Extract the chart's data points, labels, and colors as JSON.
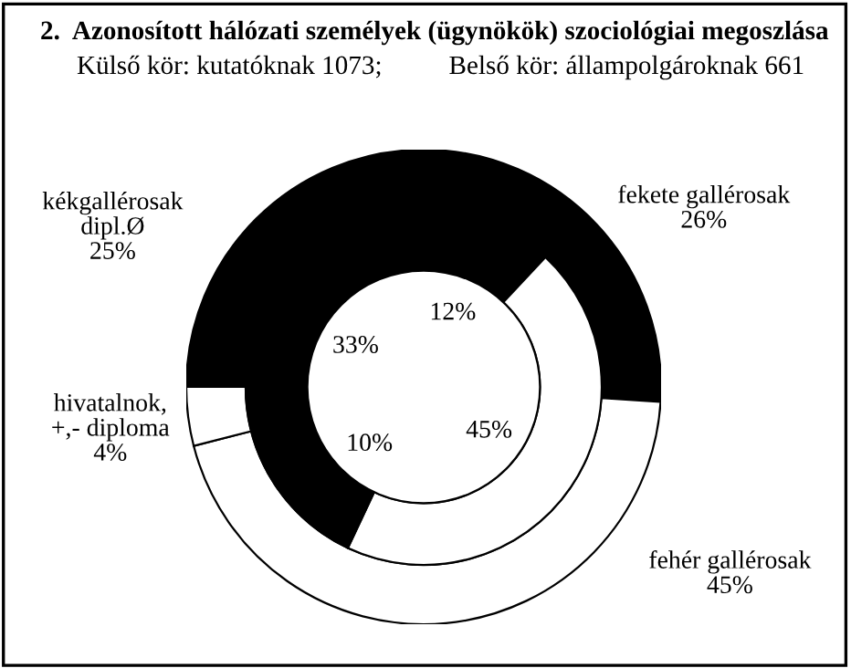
{
  "chart_data": {
    "type": "donut",
    "title": "2.  Azonosított hálózati személyek (ügynökök) szociológiai megoszlása",
    "subtitle": "Külső kör: kutatóknak 1073;          Belső kör: állampolgároknak 661",
    "categories": [
      "fekete gallérosak",
      "fehér gallérosak",
      "hivatalnok,\n+,- diploma",
      "kékgallérosak\ndipl.Ø"
    ],
    "series": [
      {
        "values": [
          26,
          45,
          4,
          25
        ],
        "colors": [
          "#000000",
          "#ffffff",
          "#ffffff",
          "#000000"
        ],
        "value_labels": [
          "26%",
          "45%",
          "4%",
          "25%"
        ]
      },
      {
        "values": [
          12,
          45,
          10,
          33
        ],
        "colors": [
          "#000000",
          "#ffffff",
          "#000000",
          "#000000"
        ],
        "value_labels": [
          "12%",
          "45%",
          "10%",
          "33%"
        ]
      }
    ]
  }
}
